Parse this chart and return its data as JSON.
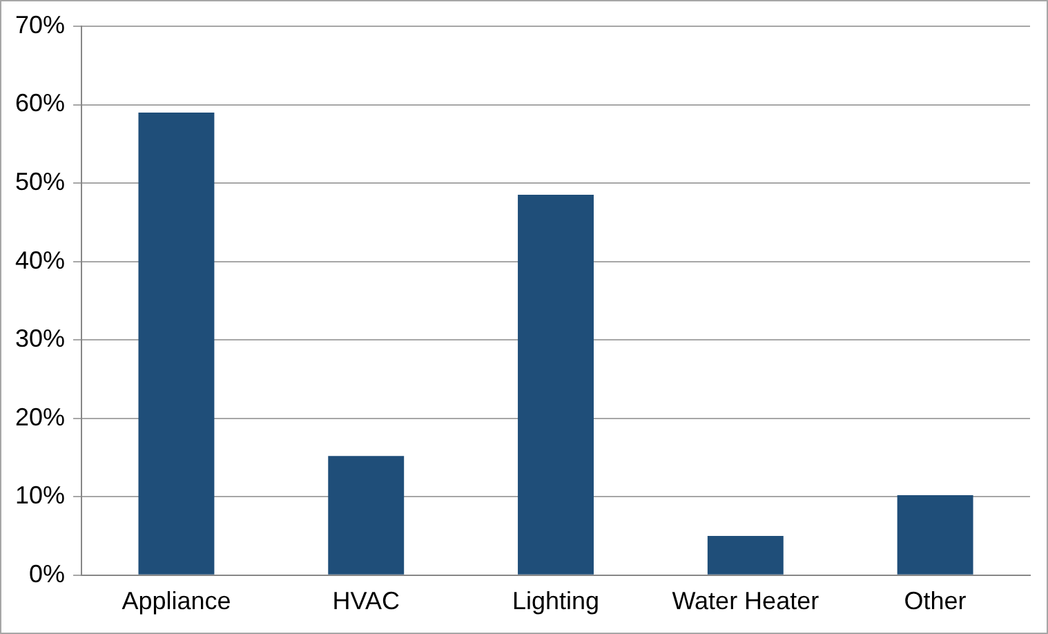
{
  "chart_data": {
    "type": "bar",
    "categories": [
      "Appliance",
      "HVAC",
      "Lighting",
      "Water Heater",
      "Other"
    ],
    "values": [
      59,
      15.2,
      48.5,
      5,
      10.2
    ],
    "color": "#1f4e79",
    "ylim": [
      0,
      70
    ],
    "yticks": [
      {
        "value": 0,
        "label": "0%"
      },
      {
        "value": 10,
        "label": "10%"
      },
      {
        "value": 20,
        "label": "20%"
      },
      {
        "value": 30,
        "label": "30%"
      },
      {
        "value": 40,
        "label": "40%"
      },
      {
        "value": 50,
        "label": "50%"
      },
      {
        "value": 60,
        "label": "60%"
      },
      {
        "value": 70,
        "label": "70%"
      }
    ],
    "grid": "y",
    "legend": false
  }
}
